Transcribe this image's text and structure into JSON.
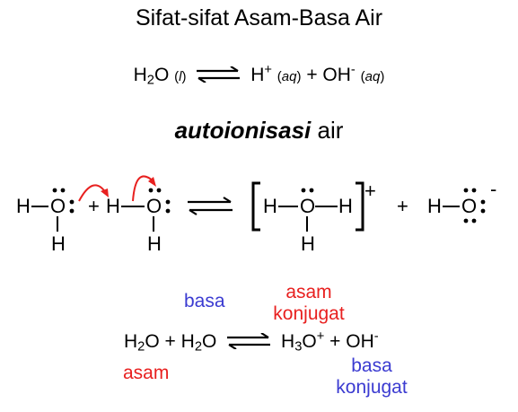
{
  "title": "Sifat-sifat Asam-Basa Air",
  "equation1": {
    "left_formula_base": "H",
    "left_formula_sub": "2",
    "left_formula_rest": "O",
    "left_state_open": "(",
    "left_state": "l",
    "left_state_close": ")",
    "product1_base": "H",
    "product1_charge": "+",
    "product1_state_open": "(",
    "product1_state": "aq",
    "product1_state_close": ")",
    "plus": "+",
    "product2_base": "OH",
    "product2_charge": "-",
    "product2_state_open": "(",
    "product2_state": "aq",
    "product2_state_close": ")"
  },
  "subtitle": {
    "bold": "autoionisasi",
    "rest": " air"
  },
  "lewis": {
    "h": "H",
    "o": "O",
    "plus": "+",
    "cation_charge": "+",
    "anion_charge": "-"
  },
  "labels": {
    "basa_left": "basa",
    "asam_konjugat_line1": "asam",
    "asam_konjugat_line2": "konjugat",
    "asam_left": "asam",
    "basa_konjugat_line1": "basa",
    "basa_konjugat_line2": "konjugat"
  },
  "equation2": {
    "r1_base": "H",
    "r1_sub": "2",
    "r1_rest": "O",
    "plus1": "+",
    "r2_base": "H",
    "r2_sub": "2",
    "r2_rest": "O",
    "p1_base": "H",
    "p1_sub": "3",
    "p1_rest": "O",
    "p1_charge": "+",
    "plus2": "+",
    "p2_base": "OH",
    "p2_charge": "-"
  },
  "colors": {
    "blue": "#3b3bd1",
    "red": "#e8201f",
    "black": "#000000"
  }
}
